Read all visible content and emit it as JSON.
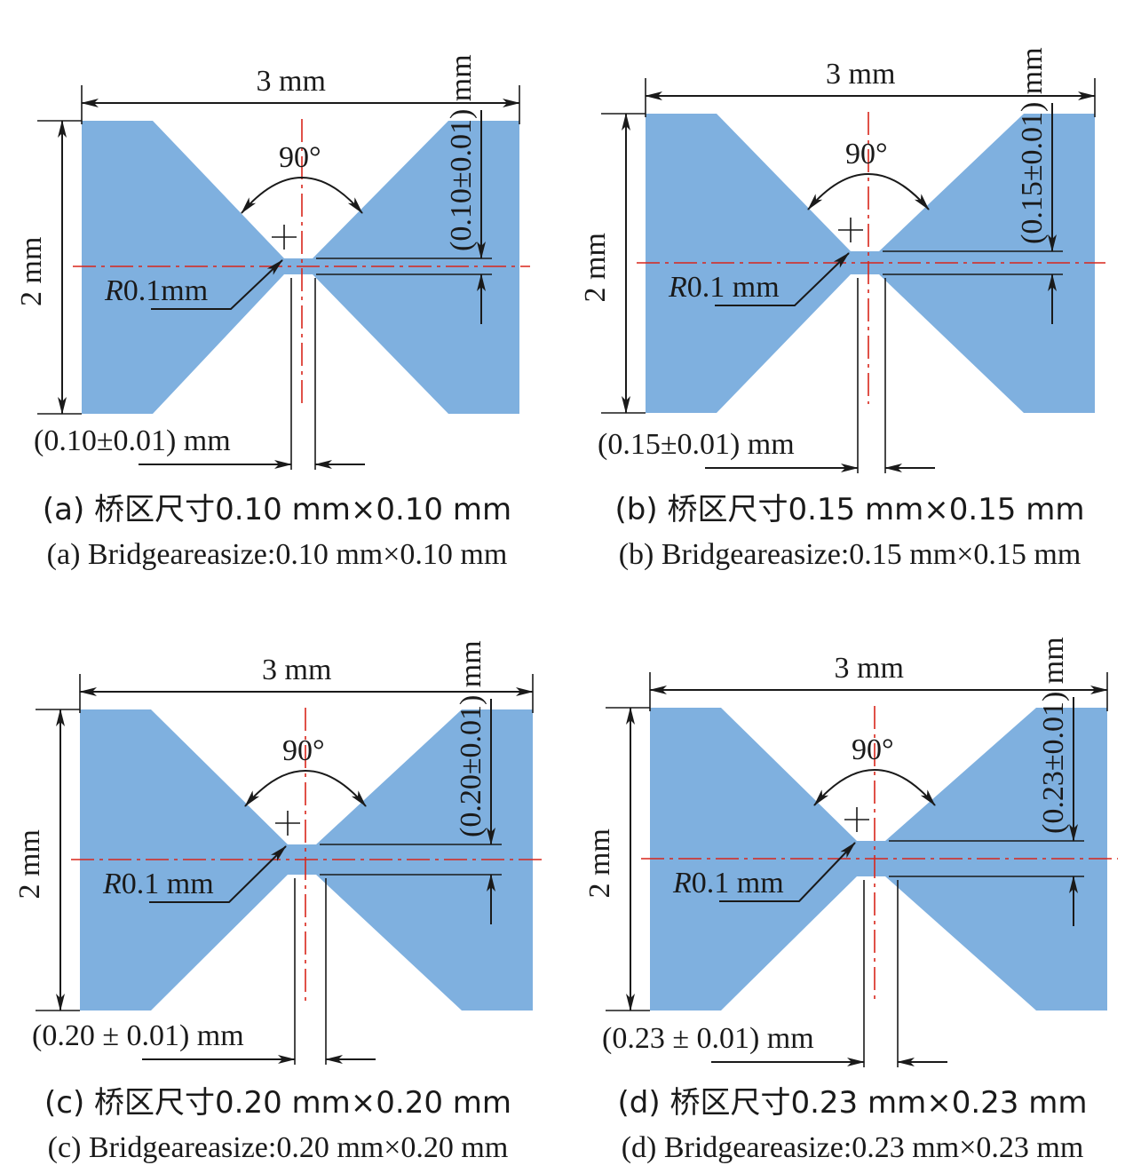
{
  "colors": {
    "body": "#7fb0df",
    "centerline": "#d9261c",
    "ink": "#1a1a1a"
  },
  "panels": [
    {
      "id": "a",
      "width_label": "3 mm",
      "height_label": "2 mm",
      "angle_label": "90°",
      "radius_label_italic": "R",
      "radius_label_rest": "0.1mm",
      "vertical_dim_label": "(0.10±0.01) mm",
      "horizontal_dim_label": "(0.10±0.01) mm",
      "caption_zh": "(a) 桥区尺寸0.10 mm×0.10 mm",
      "caption_en": "(a) Bridgeareasize:0.10 mm×0.10 mm"
    },
    {
      "id": "b",
      "width_label": "3 mm",
      "height_label": "2 mm",
      "angle_label": "90°",
      "radius_label_italic": "R",
      "radius_label_rest": "0.1 mm",
      "vertical_dim_label": "(0.15±0.01) mm",
      "horizontal_dim_label": "(0.15±0.01) mm",
      "caption_zh": "(b) 桥区尺寸0.15 mm×0.15 mm",
      "caption_en": "(b) Bridgeareasize:0.15 mm×0.15 mm"
    },
    {
      "id": "c",
      "width_label": "3 mm",
      "height_label": "2 mm",
      "angle_label": "90°",
      "radius_label_italic": "R",
      "radius_label_rest": "0.1 mm",
      "vertical_dim_label": "(0.20±0.01) mm",
      "horizontal_dim_label": "(0.20 ± 0.01) mm",
      "caption_zh": "(c) 桥区尺寸0.20 mm×0.20 mm",
      "caption_en": "(c) Bridgeareasize:0.20 mm×0.20 mm"
    },
    {
      "id": "d",
      "width_label": "3 mm",
      "height_label": "2 mm",
      "angle_label": "90°",
      "radius_label_italic": "R",
      "radius_label_rest": "0.1 mm",
      "vertical_dim_label": "(0.23±0.01) mm",
      "horizontal_dim_label": "(0.23 ± 0.01) mm",
      "caption_zh": "(d) 桥区尺寸0.23 mm×0.23 mm",
      "caption_en": "(d) Bridgeareasize:0.23 mm×0.23 mm"
    }
  ]
}
